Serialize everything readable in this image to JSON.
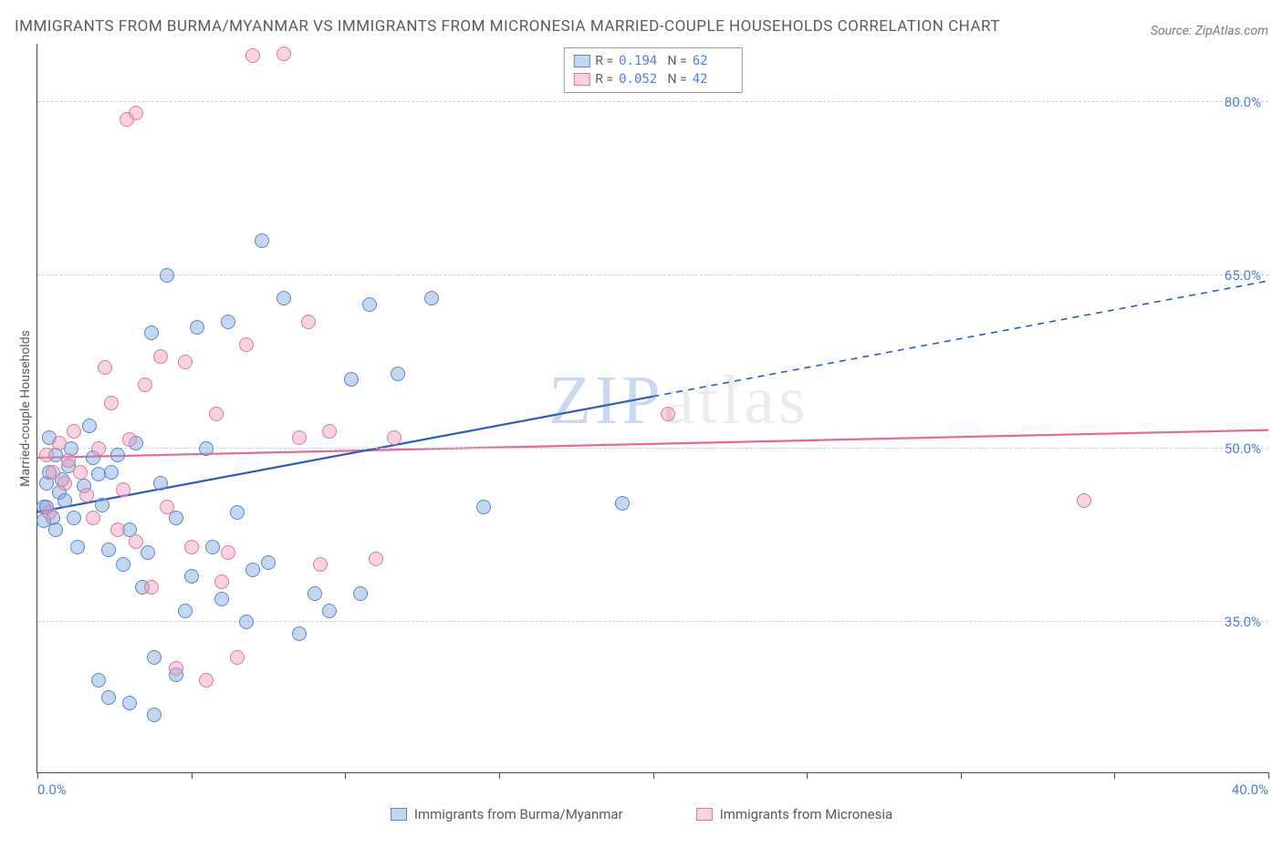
{
  "title": "IMMIGRANTS FROM BURMA/MYANMAR VS IMMIGRANTS FROM MICRONESIA MARRIED-COUPLE HOUSEHOLDS CORRELATION CHART",
  "source_label": "Source: ZipAtlas.com",
  "ylabel": "Married-couple Households",
  "watermark": "ZIPatlas",
  "chart": {
    "type": "scatter-with-trend",
    "background_color": "#ffffff",
    "grid_color": "#cfcfcf",
    "axis_color": "#4a4a4a",
    "tick_label_color": "#4f7fe0",
    "xlim": [
      0,
      40
    ],
    "ylim": [
      22,
      85
    ],
    "x_ticks": [
      0,
      5,
      10,
      15,
      20,
      25,
      30,
      35,
      40
    ],
    "x_tick_labels": {
      "0": "0.0%",
      "40": "40.0%"
    },
    "y_gridlines": [
      35,
      50,
      65,
      80
    ],
    "y_tick_labels": {
      "35": "35.0%",
      "50": "50.0%",
      "65": "65.0%",
      "80": "80.0%"
    },
    "marker_radius": 8,
    "marker_opacity": 0.55,
    "trend_line_width_solid": 2.2,
    "trend_line_width_dash": 1.6
  },
  "series": [
    {
      "id": "burma",
      "label": "Immigrants from Burma/Myanmar",
      "fill": "rgba(125,166,224,0.45)",
      "stroke": "#5a87c7",
      "trend_color": "#2a5bbf",
      "stats": {
        "R": "0.194",
        "N": "62"
      },
      "trend": {
        "x1": 0,
        "y1": 44.5,
        "x2": 20,
        "y2": 54.5,
        "x2_dash": 40,
        "y2_dash": 64.5
      },
      "points": [
        [
          0.2,
          45
        ],
        [
          0.3,
          47
        ],
        [
          0.4,
          48
        ],
        [
          0.5,
          44
        ],
        [
          0.6,
          49.5
        ],
        [
          0.7,
          46.2
        ],
        [
          0.8,
          47.3
        ],
        [
          0.9,
          45.5
        ],
        [
          1.0,
          48.5
        ],
        [
          1.1,
          50.0
        ],
        [
          1.2,
          44.0
        ],
        [
          1.3,
          41.5
        ],
        [
          0.6,
          43.0
        ],
        [
          0.2,
          43.8
        ],
        [
          0.4,
          51.0
        ],
        [
          0.3,
          45.0
        ],
        [
          1.5,
          46.8
        ],
        [
          1.7,
          52.0
        ],
        [
          1.8,
          49.2
        ],
        [
          2.0,
          47.8
        ],
        [
          2.1,
          45.1
        ],
        [
          2.3,
          41.3
        ],
        [
          2.4,
          48.0
        ],
        [
          2.6,
          49.5
        ],
        [
          2.8,
          40.0
        ],
        [
          3.0,
          43.0
        ],
        [
          3.2,
          50.5
        ],
        [
          3.4,
          38.0
        ],
        [
          3.6,
          41.0
        ],
        [
          3.7,
          60.0
        ],
        [
          3.8,
          32.0
        ],
        [
          4.0,
          47.0
        ],
        [
          4.2,
          65.0
        ],
        [
          4.5,
          44.0
        ],
        [
          4.8,
          36.0
        ],
        [
          5.0,
          39.0
        ],
        [
          5.2,
          60.5
        ],
        [
          5.5,
          50.0
        ],
        [
          5.7,
          41.5
        ],
        [
          6.0,
          37.0
        ],
        [
          6.2,
          61.0
        ],
        [
          6.5,
          44.5
        ],
        [
          6.8,
          35.0
        ],
        [
          7.0,
          39.5
        ],
        [
          7.3,
          68.0
        ],
        [
          7.5,
          40.2
        ],
        [
          8.0,
          63.0
        ],
        [
          8.5,
          34.0
        ],
        [
          2.0,
          30.0
        ],
        [
          2.3,
          28.5
        ],
        [
          3.0,
          28.0
        ],
        [
          3.8,
          27.0
        ],
        [
          4.5,
          30.5
        ],
        [
          9.0,
          37.5
        ],
        [
          9.5,
          36.0
        ],
        [
          10.2,
          56.0
        ],
        [
          10.5,
          37.5
        ],
        [
          10.8,
          62.5
        ],
        [
          11.7,
          56.5
        ],
        [
          12.8,
          63.0
        ],
        [
          14.5,
          45.0
        ],
        [
          19.0,
          45.3
        ]
      ]
    },
    {
      "id": "micronesia",
      "label": "Immigrants from Micronesia",
      "fill": "rgba(239,156,186,0.45)",
      "stroke": "#d97aa4",
      "trend_color": "#e46a9c",
      "stats": {
        "R": "0.052",
        "N": "42"
      },
      "trend": {
        "x1": 0,
        "y1": 49.2,
        "x2": 40,
        "y2": 51.6
      },
      "points": [
        [
          0.3,
          49.5
        ],
        [
          0.5,
          48.0
        ],
        [
          0.7,
          50.5
        ],
        [
          0.9,
          47.0
        ],
        [
          1.0,
          49.0
        ],
        [
          1.2,
          51.5
        ],
        [
          1.4,
          48.0
        ],
        [
          1.6,
          46.0
        ],
        [
          1.8,
          44.0
        ],
        [
          2.0,
          50.0
        ],
        [
          2.2,
          57.0
        ],
        [
          2.4,
          54.0
        ],
        [
          2.6,
          43.0
        ],
        [
          2.8,
          46.5
        ],
        [
          3.0,
          50.8
        ],
        [
          3.2,
          42.0
        ],
        [
          3.5,
          55.5
        ],
        [
          3.7,
          38.0
        ],
        [
          4.0,
          58.0
        ],
        [
          4.2,
          45.0
        ],
        [
          4.5,
          31.0
        ],
        [
          4.8,
          57.5
        ],
        [
          5.0,
          41.5
        ],
        [
          5.5,
          30.0
        ],
        [
          5.8,
          53.0
        ],
        [
          6.0,
          38.5
        ],
        [
          6.2,
          41.0
        ],
        [
          6.5,
          32.0
        ],
        [
          6.8,
          59.0
        ],
        [
          7.0,
          84.0
        ],
        [
          3.2,
          79.0
        ],
        [
          2.9,
          78.5
        ],
        [
          8.5,
          51.0
        ],
        [
          8.8,
          61.0
        ],
        [
          9.2,
          40.0
        ],
        [
          9.5,
          51.5
        ],
        [
          11.0,
          40.5
        ],
        [
          11.6,
          51.0
        ],
        [
          8.0,
          84.2
        ],
        [
          20.5,
          53.0
        ],
        [
          34.0,
          45.5
        ],
        [
          0.4,
          44.5
        ]
      ]
    }
  ],
  "stats_box": {
    "swatch_size": 16
  },
  "legend": {
    "swatch_size": 16
  }
}
